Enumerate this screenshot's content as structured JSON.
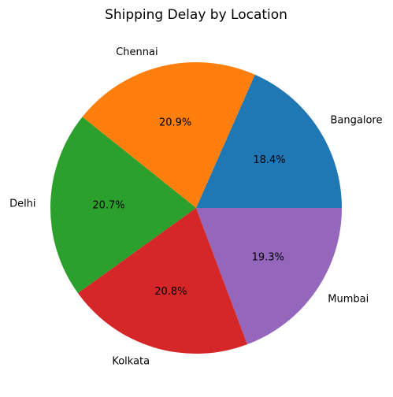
{
  "chart_data": {
    "type": "pie",
    "title": "Shipping Delay by Location",
    "slices": [
      {
        "label": "Bangalore",
        "percent": 18.4,
        "percent_label": "18.4%",
        "color": "#1f77b4"
      },
      {
        "label": "Chennai",
        "percent": 20.9,
        "percent_label": "20.9%",
        "color": "#ff7f0e"
      },
      {
        "label": "Delhi",
        "percent": 20.7,
        "percent_label": "20.7%",
        "color": "#2ca02c"
      },
      {
        "label": "Kolkata",
        "percent": 20.8,
        "percent_label": "20.8%",
        "color": "#d62728"
      },
      {
        "label": "Mumbai",
        "percent": 19.3,
        "percent_label": "19.3%",
        "color": "#9467bd"
      }
    ],
    "start_angle": 0,
    "direction": "counterclockwise",
    "legend": "none"
  }
}
